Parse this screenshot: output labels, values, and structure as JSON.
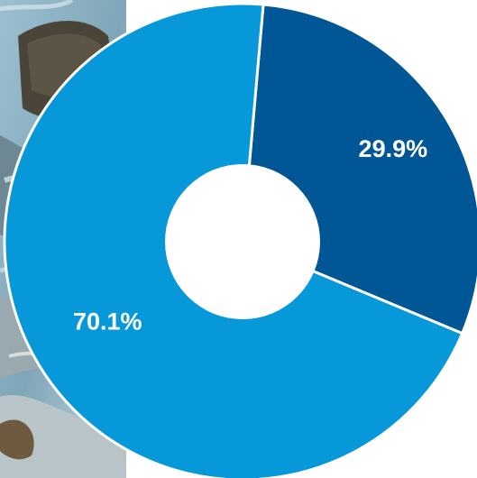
{
  "chart_data": {
    "type": "pie",
    "donut": true,
    "slices": [
      {
        "label": "29.9%",
        "value": 29.9,
        "color": "#015695"
      },
      {
        "label": "70.1%",
        "value": 70.1,
        "color": "#0798da"
      }
    ],
    "title": "",
    "legend": "none"
  },
  "background": {
    "photo": "river-rocks-photo",
    "colors": {
      "water": "#8fb4c6",
      "rock": "#4a4538",
      "foam": "#dfe9ee"
    }
  }
}
